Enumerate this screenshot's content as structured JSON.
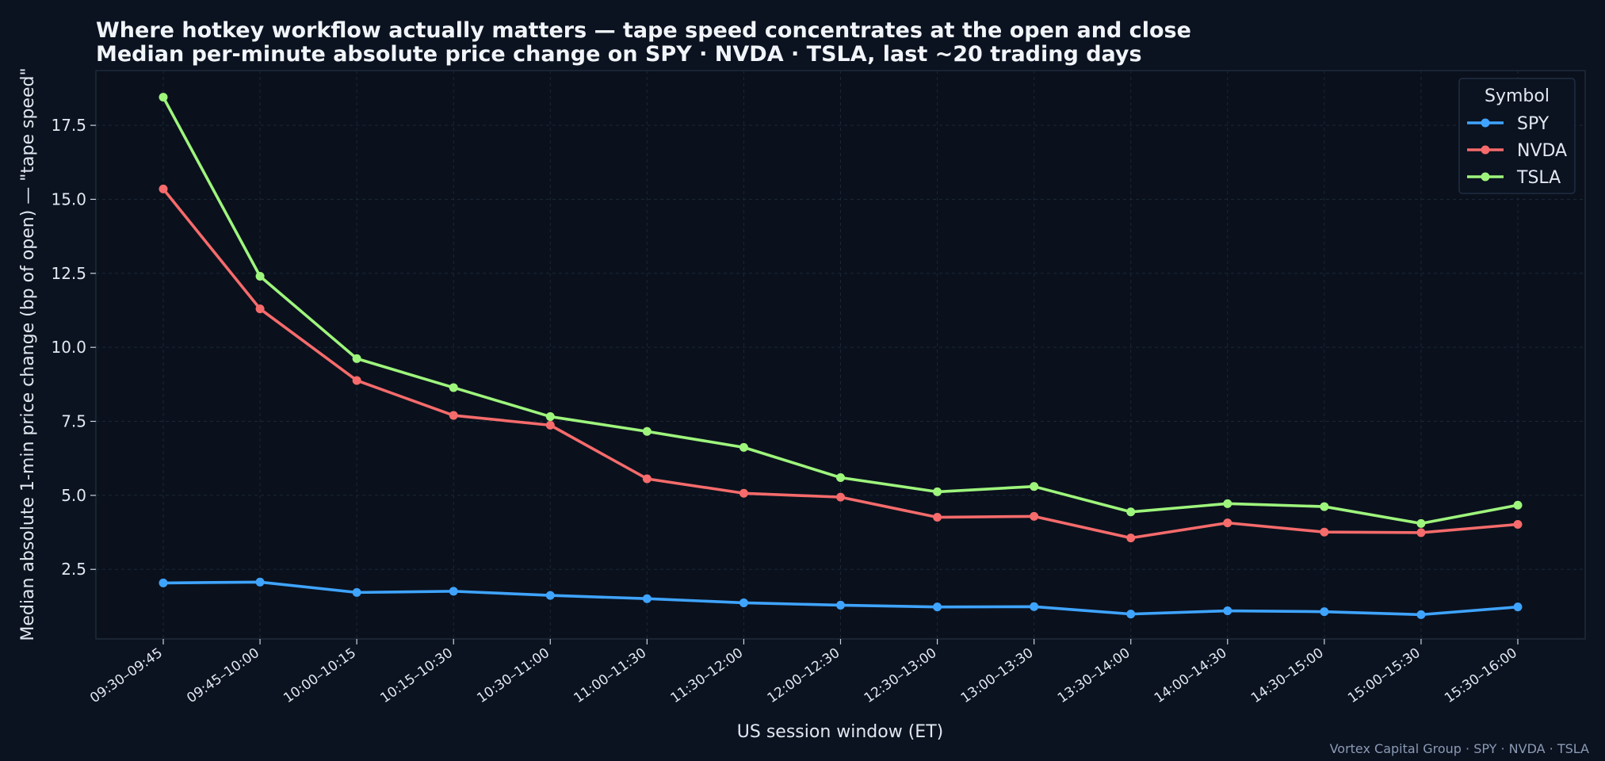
{
  "chart_data": {
    "type": "line",
    "title": "Where hotkey workflow actually matters — tape speed concentrates at the open and close",
    "subtitle": "Median per-minute absolute price change on SPY · NVDA · TSLA, last ~20 trading days",
    "xlabel": "US session window (ET)",
    "ylabel": "Median absolute 1-min price change (bp of open)  —  \"tape speed\"",
    "categories": [
      "09:30–09:45",
      "09:45–10:00",
      "10:00–10:15",
      "10:15–10:30",
      "10:30–11:00",
      "11:00–11:30",
      "11:30–12:00",
      "12:00–12:30",
      "12:30–13:00",
      "13:00–13:30",
      "13:30–14:00",
      "14:00–14:30",
      "14:30–15:00",
      "15:00–15:30",
      "15:30–16:00"
    ],
    "yticks": [
      "2.5",
      "5.0",
      "7.5",
      "10.0",
      "12.5",
      "15.0",
      "17.5"
    ],
    "ylim": [
      0.15,
      19.35
    ],
    "grid": true,
    "legend": {
      "title": "Symbol",
      "position": "top-right"
    },
    "series": [
      {
        "name": "SPY",
        "color": "#3fa4ff",
        "values": [
          2.04,
          2.07,
          1.72,
          1.76,
          1.62,
          1.51,
          1.37,
          1.29,
          1.23,
          1.24,
          0.99,
          1.1,
          1.07,
          0.97,
          1.23
        ]
      },
      {
        "name": "NVDA",
        "color": "#f66b6b",
        "values": [
          15.35,
          11.3,
          8.88,
          7.7,
          7.37,
          5.56,
          5.07,
          4.94,
          4.26,
          4.29,
          3.56,
          4.07,
          3.76,
          3.74,
          4.02
        ]
      },
      {
        "name": "TSLA",
        "color": "#9ef57c",
        "values": [
          18.45,
          12.4,
          9.62,
          8.64,
          7.66,
          7.16,
          6.62,
          5.6,
          5.12,
          5.3,
          4.44,
          4.72,
          4.62,
          4.05,
          4.67
        ]
      }
    ]
  },
  "footer": "Vortex Capital Group  ·  SPY · NVDA · TSLA"
}
